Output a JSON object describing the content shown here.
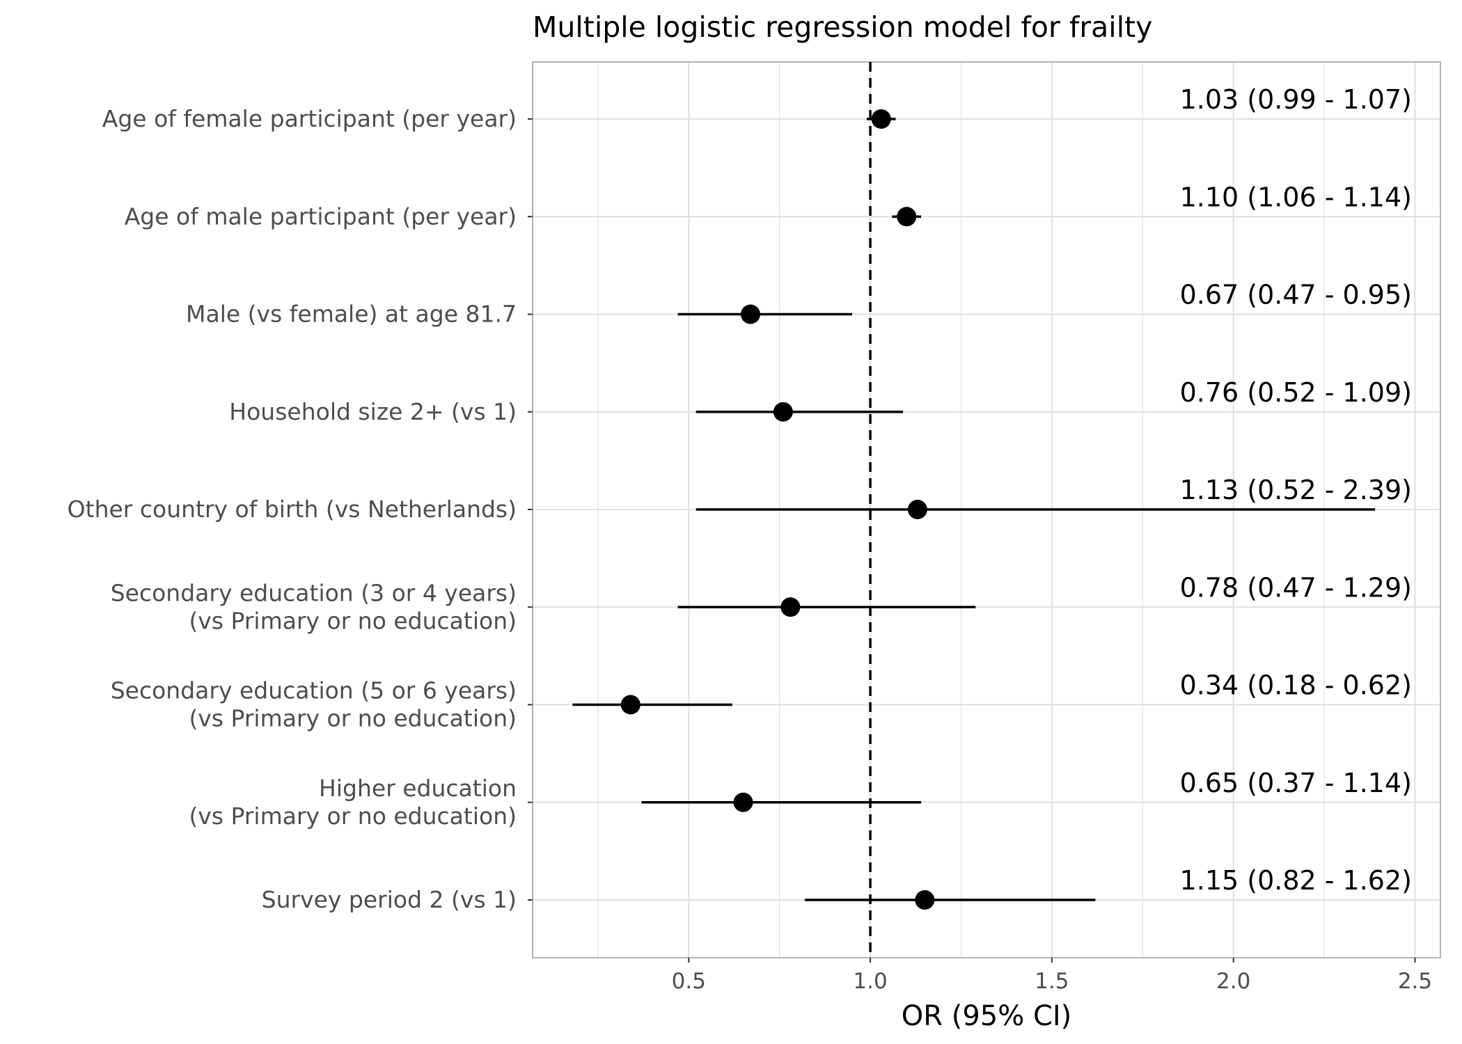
{
  "chart_data": {
    "type": "scatter",
    "subtype": "forest-plot",
    "title": "Multiple logistic regression model for frailty",
    "xlabel": "OR (95% CI)",
    "ylabel": "",
    "xlim": [
      0.07,
      2.57
    ],
    "xticks": [
      "0.5",
      "1.0",
      "1.5",
      "2.0",
      "2.5"
    ],
    "xtick_values": [
      0.5,
      1.0,
      1.5,
      2.0,
      2.5
    ],
    "reference_line": 1.0,
    "reference_line_style": "dashed",
    "grid": true,
    "legend": "none",
    "colors": {
      "point": "#000000",
      "grid": "#e0e0e0",
      "border": "#b3b3b3",
      "axis_text": "#4d4d4d"
    },
    "rows": [
      {
        "label": [
          "Age of female participant (per year)"
        ],
        "or": 1.03,
        "lo": 0.99,
        "hi": 1.07,
        "text": "1.03 (0.99 - 1.07)"
      },
      {
        "label": [
          "Age of male participant (per year)"
        ],
        "or": 1.1,
        "lo": 1.06,
        "hi": 1.14,
        "text": "1.10 (1.06 - 1.14)"
      },
      {
        "label": [
          "Male (vs female) at age 81.7"
        ],
        "or": 0.67,
        "lo": 0.47,
        "hi": 0.95,
        "text": "0.67 (0.47 - 0.95)"
      },
      {
        "label": [
          "Household size 2+ (vs 1)"
        ],
        "or": 0.76,
        "lo": 0.52,
        "hi": 1.09,
        "text": "0.76 (0.52 - 1.09)"
      },
      {
        "label": [
          "Other country of birth (vs Netherlands)"
        ],
        "or": 1.13,
        "lo": 0.52,
        "hi": 2.39,
        "text": "1.13 (0.52 - 2.39)"
      },
      {
        "label": [
          "Secondary education (3 or 4 years)",
          "(vs Primary or no education)"
        ],
        "or": 0.78,
        "lo": 0.47,
        "hi": 1.29,
        "text": "0.78 (0.47 - 1.29)"
      },
      {
        "label": [
          "Secondary education (5 or 6 years)",
          "(vs Primary or no education)"
        ],
        "or": 0.34,
        "lo": 0.18,
        "hi": 0.62,
        "text": "0.34 (0.18 - 0.62)"
      },
      {
        "label": [
          "Higher education",
          "(vs Primary or no education)"
        ],
        "or": 0.65,
        "lo": 0.37,
        "hi": 1.14,
        "text": "0.65 (0.37 - 1.14)"
      },
      {
        "label": [
          "Survey period 2 (vs 1)"
        ],
        "or": 1.15,
        "lo": 0.82,
        "hi": 1.62,
        "text": "1.15 (0.82 - 1.62)"
      }
    ]
  }
}
